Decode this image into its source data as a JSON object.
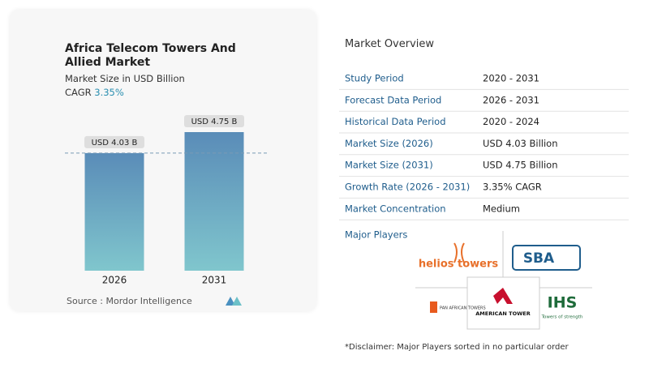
{
  "header": {
    "title": "Africa Telecom Towers And Allied Market",
    "subtitle": "Market Size in USD Billion",
    "cagr_label": "CAGR",
    "cagr_value": "3.35%"
  },
  "chart_data": {
    "type": "bar",
    "categories": [
      "2026",
      "2031"
    ],
    "values": [
      4.03,
      4.75
    ],
    "value_labels": [
      "USD 4.03 B",
      "USD 4.75 B"
    ],
    "color": "#5a8cb8"
  },
  "source": "Source : Mordor Intelligence",
  "overview": {
    "title": "Market Overview",
    "rows": [
      [
        "Study Period",
        "2020 - 2031"
      ],
      [
        "Forecast Data Period",
        "2026 - 2031"
      ],
      [
        "Historical Data Period",
        "2020 - 2024"
      ],
      [
        "Market Size (2026)",
        "USD 4.03 Billion"
      ],
      [
        "Market Size (2031)",
        "USD 4.75 Billion"
      ],
      [
        "Growth Rate (2026 - 2031)",
        "3.35% CAGR"
      ],
      [
        "Market Concentration",
        "Medium"
      ]
    ]
  },
  "players": {
    "title": "Major Players",
    "logos": [
      "helios towers",
      "SBA",
      "PAN AFRICAN TOWERS",
      "AMERICAN TOWER",
      "IHS",
      "Towers of strength"
    ]
  },
  "disclaimer": "*Disclaimer: Major Players sorted in no particular order"
}
